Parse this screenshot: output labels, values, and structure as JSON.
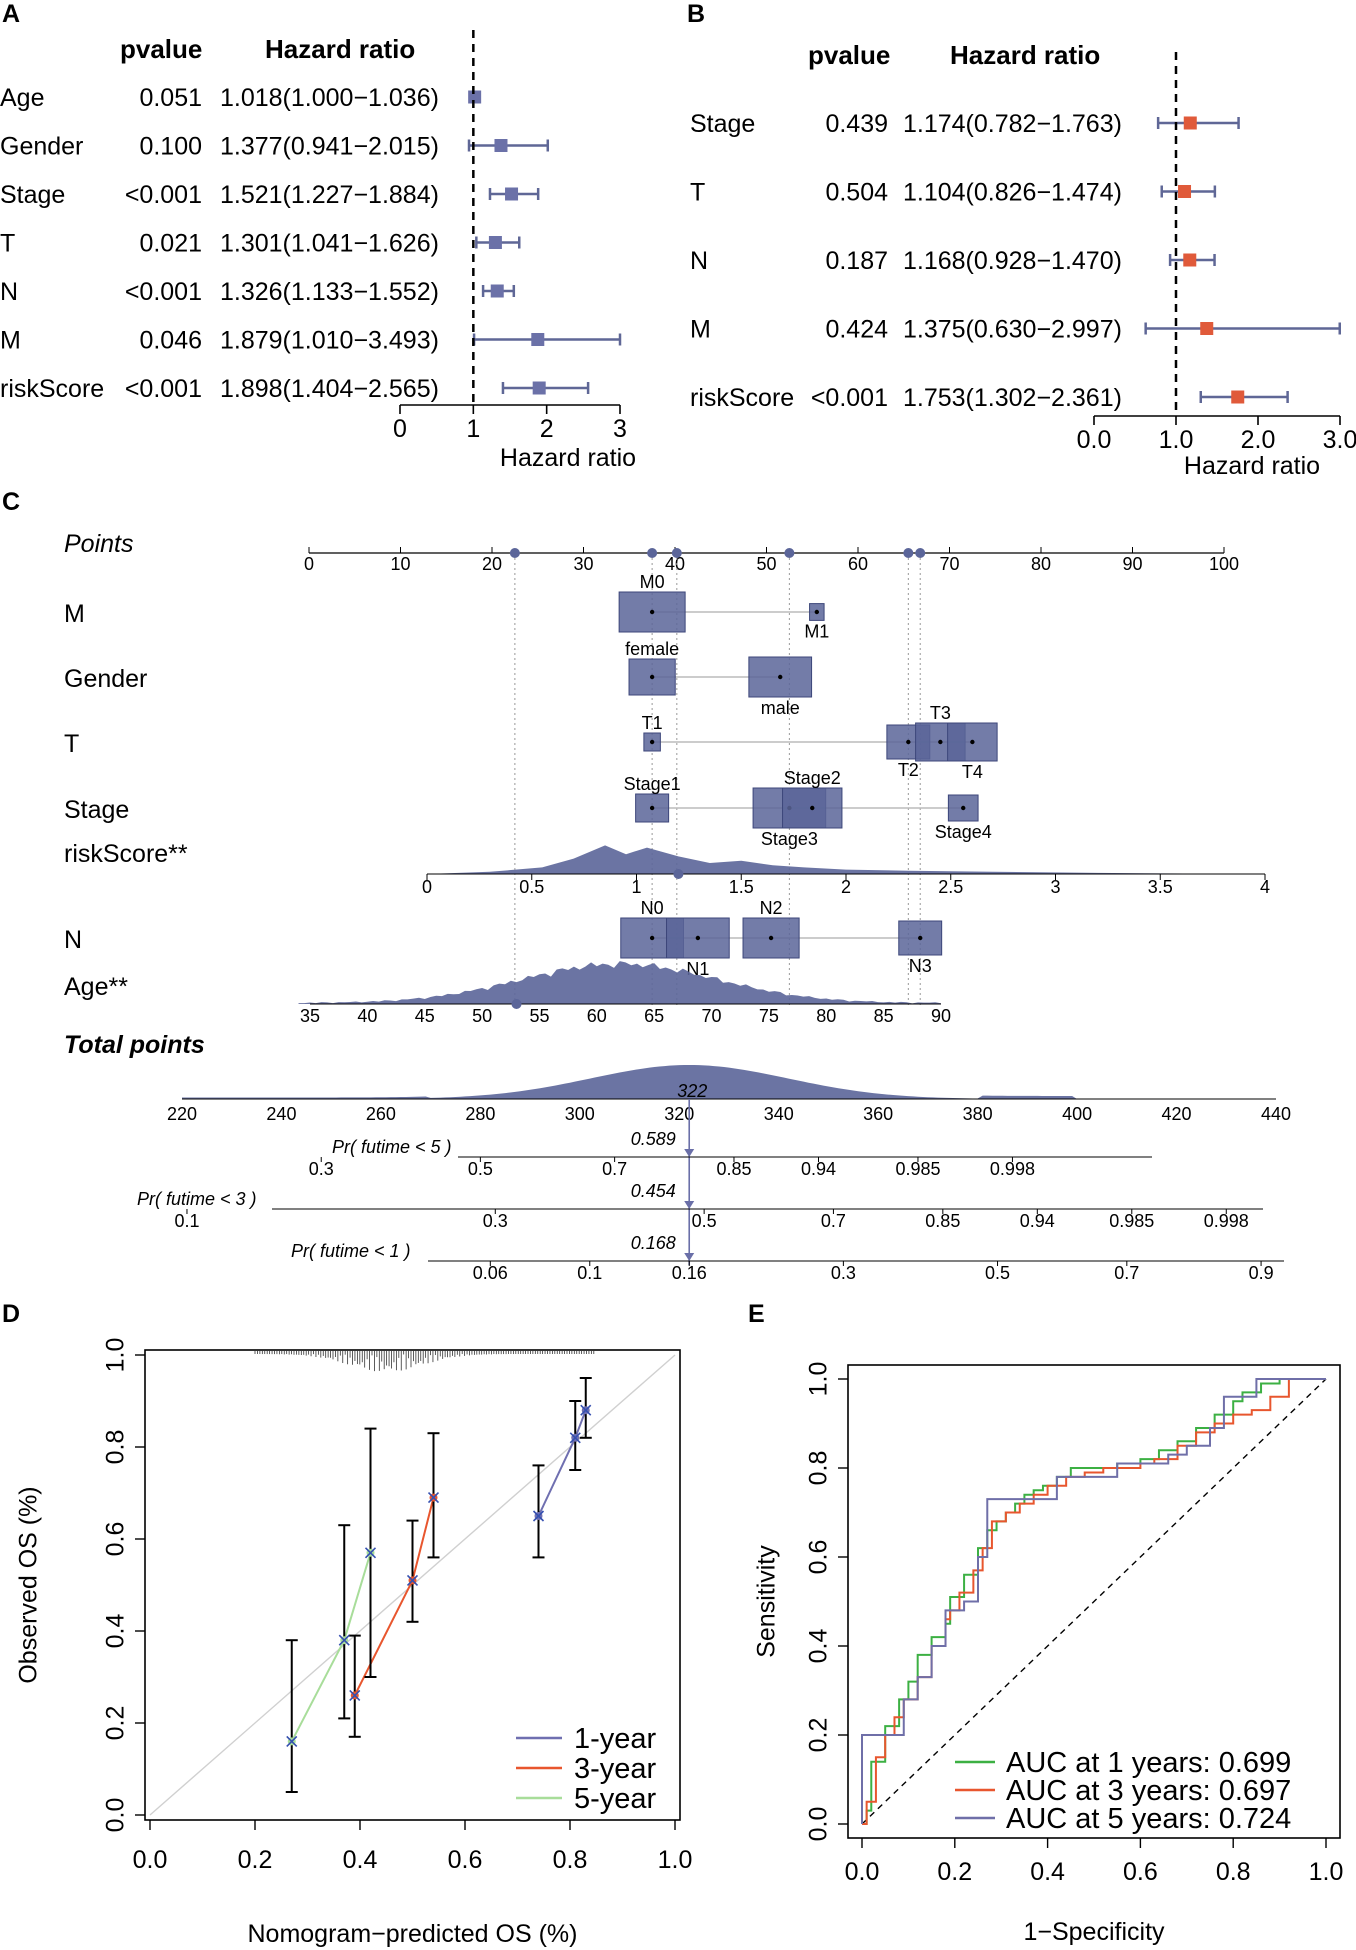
{
  "colors": {
    "forest_box": "#6b71a8",
    "forest_box_b": "#e05a3a",
    "nomo_fill": "#5b6599",
    "cal_1y": "#6f6fb0",
    "cal_3y": "#e8562e",
    "cal_5y": "#a8dd9a",
    "roc_1y": "#3cb043",
    "roc_3y": "#e8562e",
    "roc_5y": "#6f6fa8"
  },
  "chart_data": [
    {
      "panel": "A",
      "type": "forest",
      "col_headers": {
        "pvalue": "pvalue",
        "hr": "Hazard ratio"
      },
      "rows": [
        {
          "label": "Age",
          "pvalue": "0.051",
          "hr_text": "1.018(1.000−1.036)",
          "hr": 1.018,
          "lo": 1.0,
          "hi": 1.036
        },
        {
          "label": "Gender",
          "pvalue": "0.100",
          "hr_text": "1.377(0.941−2.015)",
          "hr": 1.377,
          "lo": 0.941,
          "hi": 2.015
        },
        {
          "label": "Stage",
          "pvalue": "<0.001",
          "hr_text": "1.521(1.227−1.884)",
          "hr": 1.521,
          "lo": 1.227,
          "hi": 1.884
        },
        {
          "label": "T",
          "pvalue": "0.021",
          "hr_text": "1.301(1.041−1.626)",
          "hr": 1.301,
          "lo": 1.041,
          "hi": 1.626
        },
        {
          "label": "N",
          "pvalue": "<0.001",
          "hr_text": "1.326(1.133−1.552)",
          "hr": 1.326,
          "lo": 1.133,
          "hi": 1.552
        },
        {
          "label": "M",
          "pvalue": "0.046",
          "hr_text": "1.879(1.010−3.493)",
          "hr": 1.879,
          "lo": 1.01,
          "hi": 3.493
        },
        {
          "label": "riskScore",
          "pvalue": "<0.001",
          "hr_text": "1.898(1.404−2.565)",
          "hr": 1.898,
          "lo": 1.404,
          "hi": 2.565
        }
      ],
      "xaxis": {
        "ticks": [
          "0",
          "1",
          "2",
          "3"
        ],
        "tick_values": [
          0,
          1,
          2,
          3
        ],
        "xlim": [
          0,
          3
        ],
        "ref_line": 1,
        "label": "Hazard ratio"
      }
    },
    {
      "panel": "B",
      "type": "forest",
      "col_headers": {
        "pvalue": "pvalue",
        "hr": "Hazard ratio"
      },
      "rows": [
        {
          "label": "Stage",
          "pvalue": "0.439",
          "hr_text": "1.174(0.782−1.763)",
          "hr": 1.174,
          "lo": 0.782,
          "hi": 1.763
        },
        {
          "label": "T",
          "pvalue": "0.504",
          "hr_text": "1.104(0.826−1.474)",
          "hr": 1.104,
          "lo": 0.826,
          "hi": 1.474
        },
        {
          "label": "N",
          "pvalue": "0.187",
          "hr_text": "1.168(0.928−1.470)",
          "hr": 1.168,
          "lo": 0.928,
          "hi": 1.47
        },
        {
          "label": "M",
          "pvalue": "0.424",
          "hr_text": "1.375(0.630−2.997)",
          "hr": 1.375,
          "lo": 0.63,
          "hi": 2.997
        },
        {
          "label": "riskScore",
          "pvalue": "<0.001",
          "hr_text": "1.753(1.302−2.361)",
          "hr": 1.753,
          "lo": 1.302,
          "hi": 2.361
        }
      ],
      "xaxis": {
        "ticks": [
          "0.0",
          "1.0",
          "2.0",
          "3.0"
        ],
        "tick_values": [
          0,
          1,
          2,
          3
        ],
        "xlim": [
          0,
          3
        ],
        "ref_line": 1,
        "label": "Hazard ratio"
      }
    },
    {
      "panel": "C",
      "type": "nomogram",
      "points_row": {
        "label": "Points",
        "ticks": [
          0,
          10,
          20,
          30,
          40,
          50,
          60,
          70,
          80,
          90,
          100
        ],
        "markers": [
          22.5,
          37.5,
          40.2,
          52.5,
          65.5,
          66.8
        ]
      },
      "variables": [
        {
          "label": "M",
          "levels": [
            {
              "name": "M0",
              "points": 37.5,
              "size": 1.0,
              "label_pos": "above"
            },
            {
              "name": "M1",
              "points": 55.5,
              "size": 0.22,
              "label_pos": "below"
            }
          ]
        },
        {
          "label": "Gender",
          "levels": [
            {
              "name": "female",
              "points": 37.5,
              "size": 0.7,
              "label_pos": "above"
            },
            {
              "name": "male",
              "points": 51.5,
              "size": 0.95,
              "label_pos": "below"
            }
          ]
        },
        {
          "label": "T",
          "levels": [
            {
              "name": "T1",
              "points": 37.5,
              "size": 0.25,
              "label_pos": "above"
            },
            {
              "name": "T2",
              "points": 65.5,
              "size": 0.65,
              "label_pos": "below"
            },
            {
              "name": "T3",
              "points": 69.0,
              "size": 0.75,
              "label_pos": "above"
            },
            {
              "name": "T4",
              "points": 72.5,
              "size": 0.75,
              "label_pos": "below"
            }
          ]
        },
        {
          "label": "Stage",
          "levels": [
            {
              "name": "Stage1",
              "points": 37.5,
              "size": 0.5,
              "label_pos": "above"
            },
            {
              "name": "Stage3",
              "points": 52.5,
              "size": 1.1,
              "label_pos": "below"
            },
            {
              "name": "Stage2",
              "points": 55.0,
              "size": 0.9,
              "label_pos": "above"
            },
            {
              "name": "Stage4",
              "points": 71.5,
              "size": 0.45,
              "label_pos": "below"
            }
          ]
        }
      ],
      "risk_score": {
        "label": "riskScore**",
        "ticks": [
          "0",
          "0.5",
          "1",
          "1.5",
          "2",
          "2.5",
          "3",
          "3.5",
          "4"
        ],
        "tick_values": [
          0,
          0.5,
          1,
          1.5,
          2,
          2.5,
          3,
          3.5,
          4
        ],
        "marker_value": 1.2
      },
      "n_variable": {
        "label": "N",
        "levels": [
          {
            "name": "N0",
            "points": 37.5,
            "size": 0.95,
            "label_pos": "above"
          },
          {
            "name": "N1",
            "points": 42.5,
            "size": 0.95,
            "label_pos": "below"
          },
          {
            "name": "N2",
            "points": 50.5,
            "size": 0.85,
            "label_pos": "above"
          },
          {
            "name": "N3",
            "points": 66.8,
            "size": 0.65,
            "label_pos": "below"
          }
        ]
      },
      "age": {
        "label": "Age**",
        "ticks": [
          "35",
          "40",
          "45",
          "50",
          "55",
          "60",
          "65",
          "70",
          "75",
          "80",
          "85",
          "90"
        ],
        "tick_values": [
          35,
          40,
          45,
          50,
          55,
          60,
          65,
          70,
          75,
          80,
          85,
          90
        ],
        "marker_value": 53
      },
      "total_points": {
        "label": "Total points",
        "ticks": [
          "220",
          "240",
          "260",
          "280",
          "300",
          "320",
          "340",
          "360",
          "380",
          "400",
          "420",
          "440"
        ],
        "tick_values": [
          220,
          240,
          260,
          280,
          300,
          320,
          340,
          360,
          380,
          400,
          420,
          440
        ],
        "value": 322,
        "value_label": "322"
      },
      "probabilities": [
        {
          "label": "Pr( futime < 5 )",
          "value_label": "0.589",
          "ticks": [
            "0.3",
            "0.5",
            "0.7",
            "0.85",
            "0.94",
            "0.985",
            "0.998"
          ],
          "tick_totals": [
            248,
            280,
            307,
            331,
            348,
            368,
            387
          ]
        },
        {
          "label": "Pr( futime < 3 )",
          "value_label": "0.454",
          "ticks": [
            "0.1",
            "0.3",
            "0.5",
            "0.7",
            "0.85",
            "0.94",
            "0.985",
            "0.998"
          ],
          "tick_totals": [
            221,
            283,
            325,
            351,
            373,
            392,
            411,
            430
          ]
        },
        {
          "label": "Pr( futime < 1 )",
          "value_label": "0.168",
          "ticks": [
            "0.06",
            "0.1",
            "0.16",
            "0.3",
            "0.5",
            "0.7",
            "0.9"
          ],
          "tick_totals": [
            282,
            302,
            322,
            353,
            384,
            410,
            437
          ]
        }
      ]
    },
    {
      "panel": "D",
      "type": "line",
      "xlabel": "Nomogram−predicted OS (%)",
      "ylabel": "Observed OS (%)",
      "xlim": [
        0,
        1
      ],
      "ylim": [
        0,
        1
      ],
      "xticks": [
        "0.0",
        "0.2",
        "0.4",
        "0.6",
        "0.8",
        "1.0"
      ],
      "yticks": [
        "0.0",
        "0.2",
        "0.4",
        "0.6",
        "0.8",
        "1.0"
      ],
      "series": [
        {
          "name": "1-year",
          "color": "#6f6fb0",
          "x": [
            0.74,
            0.81,
            0.83
          ],
          "y": [
            0.65,
            0.82,
            0.88
          ],
          "lo": [
            0.56,
            0.75,
            0.82
          ],
          "hi": [
            0.76,
            0.9,
            0.95
          ]
        },
        {
          "name": "3-year",
          "color": "#e8562e",
          "x": [
            0.39,
            0.5,
            0.54
          ],
          "y": [
            0.26,
            0.51,
            0.69
          ],
          "lo": [
            0.17,
            0.42,
            0.56
          ],
          "hi": [
            0.39,
            0.64,
            0.83
          ]
        },
        {
          "name": "5-year",
          "color": "#a8dd9a",
          "x": [
            0.27,
            0.37,
            0.42
          ],
          "y": [
            0.16,
            0.38,
            0.57
          ],
          "lo": [
            0.05,
            0.21,
            0.3
          ],
          "hi": [
            0.38,
            0.63,
            0.84
          ]
        }
      ]
    },
    {
      "panel": "E",
      "type": "line",
      "xlabel": "1−Specificity",
      "ylabel": "Sensitivity",
      "xlim": [
        0,
        1
      ],
      "ylim": [
        0,
        1
      ],
      "xticks": [
        "0.0",
        "0.2",
        "0.4",
        "0.6",
        "0.8",
        "1.0"
      ],
      "yticks": [
        "0.0",
        "0.2",
        "0.4",
        "0.6",
        "0.8",
        "1.0"
      ],
      "series": [
        {
          "name": "AUC at 1 years: 0.699",
          "color": "#3cb043",
          "x": [
            0,
            0.01,
            0.02,
            0.05,
            0.08,
            0.1,
            0.12,
            0.15,
            0.18,
            0.19,
            0.22,
            0.25,
            0.27,
            0.29,
            0.31,
            0.33,
            0.35,
            0.37,
            0.39,
            0.42,
            0.45,
            0.5,
            0.55,
            0.6,
            0.64,
            0.68,
            0.72,
            0.76,
            0.8,
            0.82,
            0.86,
            0.9,
            1.0
          ],
          "y": [
            0,
            0.03,
            0.14,
            0.22,
            0.28,
            0.32,
            0.38,
            0.42,
            0.45,
            0.51,
            0.56,
            0.62,
            0.66,
            0.68,
            0.7,
            0.72,
            0.74,
            0.75,
            0.76,
            0.78,
            0.8,
            0.8,
            0.81,
            0.82,
            0.84,
            0.86,
            0.89,
            0.92,
            0.95,
            0.97,
            0.99,
            1.0,
            1.0
          ]
        },
        {
          "name": "AUC at 3 years: 0.697",
          "color": "#e8562e",
          "x": [
            0,
            0.01,
            0.03,
            0.05,
            0.07,
            0.09,
            0.12,
            0.15,
            0.18,
            0.19,
            0.21,
            0.24,
            0.26,
            0.28,
            0.31,
            0.34,
            0.37,
            0.4,
            0.44,
            0.48,
            0.52,
            0.56,
            0.6,
            0.63,
            0.68,
            0.72,
            0.76,
            0.8,
            0.84,
            0.88,
            0.92,
            1.0
          ],
          "y": [
            0,
            0.05,
            0.15,
            0.2,
            0.24,
            0.28,
            0.33,
            0.4,
            0.46,
            0.48,
            0.52,
            0.57,
            0.62,
            0.68,
            0.7,
            0.72,
            0.74,
            0.76,
            0.78,
            0.79,
            0.8,
            0.8,
            0.81,
            0.82,
            0.85,
            0.88,
            0.9,
            0.92,
            0.93,
            0.96,
            1.0,
            1.0
          ]
        },
        {
          "name": "AUC at 5 years: 0.724",
          "color": "#6f6fa8",
          "x": [
            0,
            0.0,
            0.03,
            0.09,
            0.12,
            0.15,
            0.18,
            0.22,
            0.25,
            0.27,
            0.3,
            0.35,
            0.37,
            0.42,
            0.5,
            0.55,
            0.6,
            0.66,
            0.7,
            0.75,
            0.78,
            0.85,
            0.9,
            1.0
          ],
          "y": [
            0,
            0.2,
            0.2,
            0.28,
            0.33,
            0.4,
            0.48,
            0.5,
            0.6,
            0.73,
            0.73,
            0.73,
            0.73,
            0.78,
            0.78,
            0.81,
            0.81,
            0.83,
            0.85,
            0.89,
            0.96,
            1.0,
            1.0,
            1.0
          ]
        }
      ]
    }
  ]
}
